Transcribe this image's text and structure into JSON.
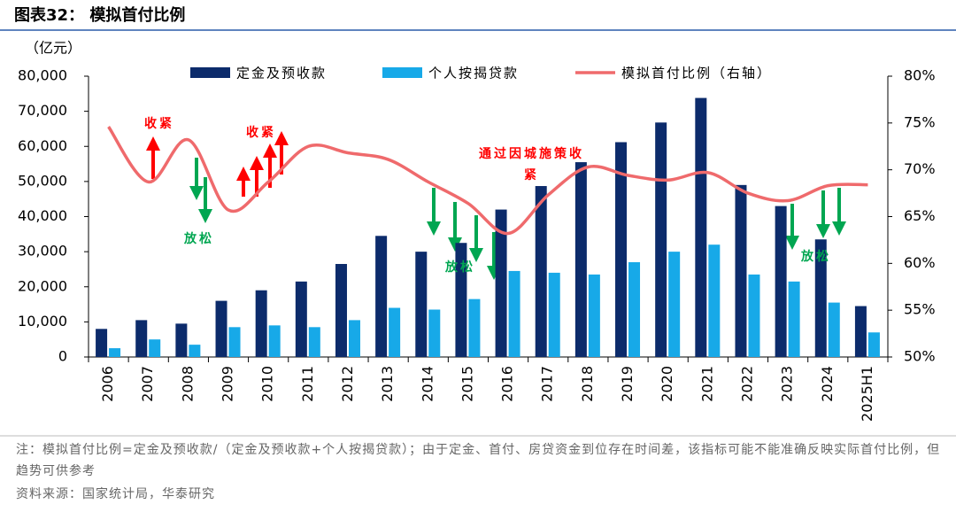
{
  "chart_data": {
    "type": "bar_line",
    "title": "图表32：  模拟首付比例",
    "y_label": "（亿元）",
    "categories": [
      "2006",
      "2007",
      "2008",
      "2009",
      "2010",
      "2011",
      "2012",
      "2013",
      "2014",
      "2015",
      "2016",
      "2017",
      "2018",
      "2019",
      "2020",
      "2021",
      "2022",
      "2023",
      "2024",
      "2025H1"
    ],
    "series": [
      {
        "name": "定金及预收款",
        "color": "#0c2b6b",
        "kind": "bar",
        "values": [
          8000,
          10500,
          9500,
          16000,
          19000,
          21500,
          26500,
          34500,
          30000,
          32500,
          42000,
          48700,
          55500,
          61200,
          66800,
          73800,
          49000,
          43000,
          33500,
          14500
        ]
      },
      {
        "name": "个人按揭贷款",
        "color": "#17a9e8",
        "kind": "bar",
        "values": [
          2500,
          5000,
          3500,
          8500,
          9000,
          8500,
          10500,
          14000,
          13500,
          16500,
          24500,
          24000,
          23500,
          27000,
          30000,
          32000,
          23500,
          21500,
          15500,
          7000
        ]
      },
      {
        "name": "模拟首付比例（右轴）",
        "color": "#ef6a6c",
        "kind": "line",
        "axis": "y2",
        "values": [
          74.6,
          68.7,
          73.2,
          65.7,
          68.7,
          72.5,
          71.8,
          71.1,
          68.7,
          66.4,
          63.2,
          67.3,
          70.3,
          69.4,
          68.9,
          69.7,
          67.5,
          66.7,
          68.3,
          68.4
        ]
      }
    ],
    "ylim": [
      0,
      80000
    ],
    "yticks": [
      0,
      {
        "value": 10000,
        "label": "10,000"
      },
      {
        "value": 20000,
        "label": "20,000"
      },
      {
        "value": 30000,
        "label": "30,000"
      },
      {
        "value": 40000,
        "label": "40,000"
      },
      {
        "value": 50000,
        "label": "50,000"
      },
      {
        "value": 60000,
        "label": "60,000"
      },
      {
        "value": 70000,
        "label": "70,000"
      },
      {
        "value": 80000,
        "label": "80,000"
      }
    ],
    "y2lim": [
      50,
      80
    ],
    "y2ticks": [
      {
        "value": 50,
        "label": "50%"
      },
      {
        "value": 55,
        "label": "55%"
      },
      {
        "value": 60,
        "label": "60%"
      },
      {
        "value": 65,
        "label": "65%"
      },
      {
        "value": 70,
        "label": "70%"
      },
      {
        "value": 75,
        "label": "75%"
      },
      {
        "value": 80,
        "label": "80%"
      }
    ],
    "annotations": [
      {
        "text": "收紧",
        "color": "#ff0000"
      },
      {
        "text": "收紧",
        "color": "#ff0000"
      },
      {
        "text": "通过因城施策收紧",
        "color": "#ff0000"
      },
      {
        "text": "放松",
        "color": "#00a651"
      },
      {
        "text": "放松",
        "color": "#00a651"
      },
      {
        "text": "放松",
        "color": "#00a651"
      }
    ],
    "note": "注：模拟首付比例=定金及预收款/（定金及预收款+个人按揭贷款）；由于定金、首付、房贷资金到位存在时间差，该指标可能不能准确反映实际首付比例，但趋势可供参考",
    "source": "资料来源：国家统计局，华泰研究"
  }
}
